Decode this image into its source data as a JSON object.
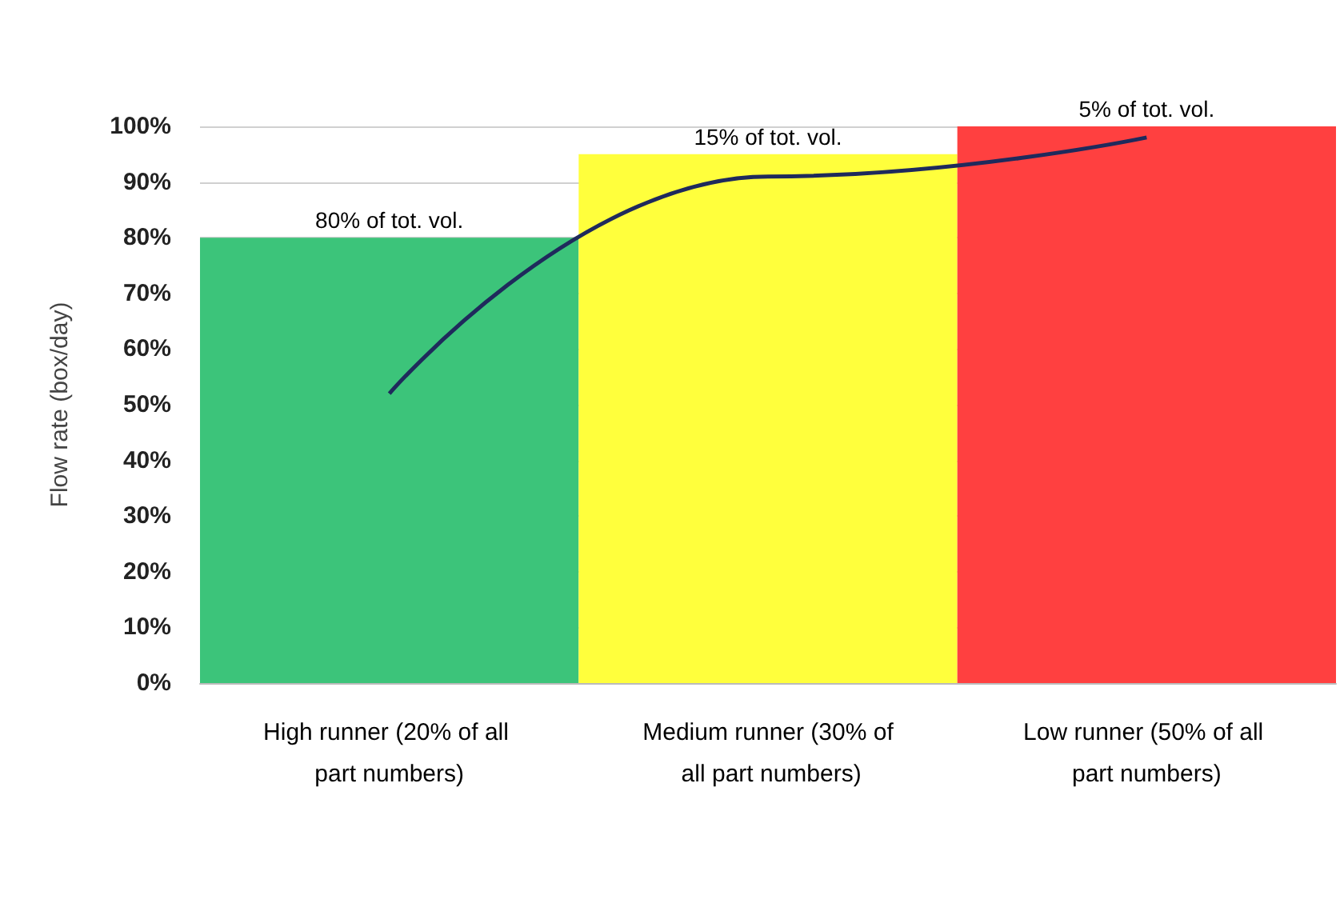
{
  "chart_data": {
    "type": "bar",
    "ylabel": "Flow rate (box/day)",
    "categories": [
      "High runner (20% of all part numbers)",
      "Medium runner (30% of all part numbers)",
      "Low runner (50% of all part numbers)"
    ],
    "values": [
      80,
      95,
      100
    ],
    "colors": [
      "#3cc47a",
      "#ffff3c",
      "#ff4040"
    ],
    "series": [
      {
        "type": "line",
        "color": "#1f2a5c",
        "values": [
          52,
          91,
          98
        ]
      }
    ],
    "ylim": [
      0,
      100
    ],
    "yticks": [
      {
        "value": 0,
        "label": "0%"
      },
      {
        "value": 10,
        "label": "10%"
      },
      {
        "value": 20,
        "label": "20%"
      },
      {
        "value": 30,
        "label": "30%"
      },
      {
        "value": 40,
        "label": "40%"
      },
      {
        "value": 50,
        "label": "50%"
      },
      {
        "value": 60,
        "label": "60%"
      },
      {
        "value": 70,
        "label": "70%"
      },
      {
        "value": 80,
        "label": "80%"
      },
      {
        "value": 90,
        "label": "90%"
      },
      {
        "value": 100,
        "label": "100%"
      }
    ],
    "grid": "y",
    "marker": "none",
    "annotations": [
      {
        "text": "80% of tot. vol.",
        "x": "High runner (20% of all part numbers)",
        "y": 80
      },
      {
        "text": "15% of tot. vol.",
        "x": "Medium runner (30% of all part numbers)",
        "y": 95
      },
      {
        "text": "5% of tot. vol.",
        "x": "Low runner (50% of all part numbers)",
        "y": 100
      }
    ]
  }
}
